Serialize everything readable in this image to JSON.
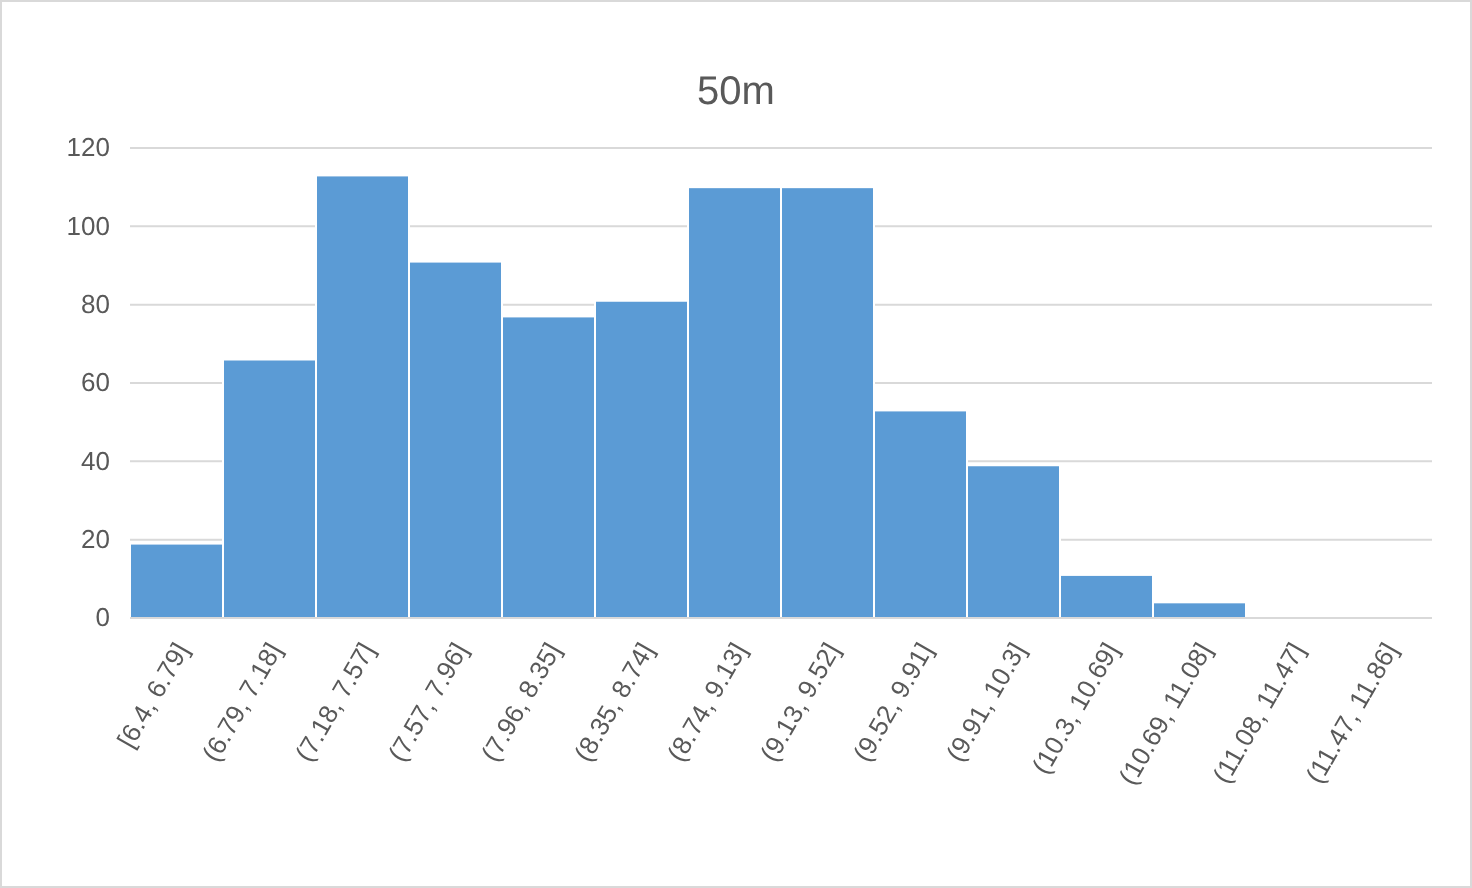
{
  "chart_data": {
    "type": "bar",
    "title": "50m",
    "categories": [
      "[6.4, 6.79]",
      "(6.79, 7.18]",
      "(7.18, 7.57]",
      "(7.57, 7.96]",
      "(7.96, 8.35]",
      "(8.35, 8.74]",
      "(8.74, 9.13]",
      "(9.13, 9.52]",
      "(9.52, 9.91]",
      "(9.91, 10.3]",
      "(10.3, 10.69]",
      "(10.69, 11.08]",
      "(11.08, 11.47]",
      "(11.47, 11.86]"
    ],
    "values": [
      19,
      66,
      113,
      91,
      77,
      81,
      110,
      110,
      53,
      39,
      11,
      4,
      0,
      0
    ],
    "color": "#5b9bd5",
    "ylim": [
      0,
      120
    ],
    "yticks": [
      0,
      20,
      40,
      60,
      80,
      100,
      120
    ],
    "grid": "y"
  }
}
